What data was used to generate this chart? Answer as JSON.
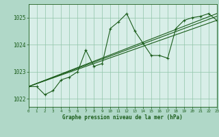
{
  "title": "Graphe pression niveau de la mer (hPa)",
  "bg_color": "#b0d8c8",
  "plot_bg_color": "#d8eee8",
  "grid_color": "#90c4a8",
  "line_color": "#1a5c1a",
  "xlim": [
    0,
    23
  ],
  "ylim": [
    1021.7,
    1025.5
  ],
  "yticks": [
    1022,
    1023,
    1024,
    1025
  ],
  "xticks": [
    0,
    1,
    2,
    3,
    4,
    5,
    6,
    7,
    8,
    9,
    10,
    11,
    12,
    13,
    14,
    15,
    16,
    17,
    18,
    19,
    20,
    21,
    22,
    23
  ],
  "series1": {
    "x": [
      0,
      1,
      2,
      3,
      4,
      5,
      6,
      7,
      8,
      9,
      10,
      11,
      12,
      13,
      14,
      15,
      16,
      17,
      18,
      19,
      20,
      21,
      22,
      23
    ],
    "y": [
      1022.45,
      1022.45,
      1022.15,
      1022.3,
      1022.7,
      1022.8,
      1023.0,
      1023.8,
      1023.2,
      1023.3,
      1024.6,
      1024.85,
      1025.15,
      1024.5,
      1024.05,
      1023.6,
      1023.6,
      1023.5,
      1024.6,
      1024.9,
      1025.0,
      1025.05,
      1025.15,
      1024.9
    ]
  },
  "series2": {
    "x": [
      0,
      23
    ],
    "y": [
      1022.45,
      1025.15
    ]
  },
  "series3": {
    "x": [
      0,
      23
    ],
    "y": [
      1022.45,
      1024.9
    ]
  },
  "series4": {
    "x": [
      0,
      23
    ],
    "y": [
      1022.45,
      1025.05
    ]
  }
}
